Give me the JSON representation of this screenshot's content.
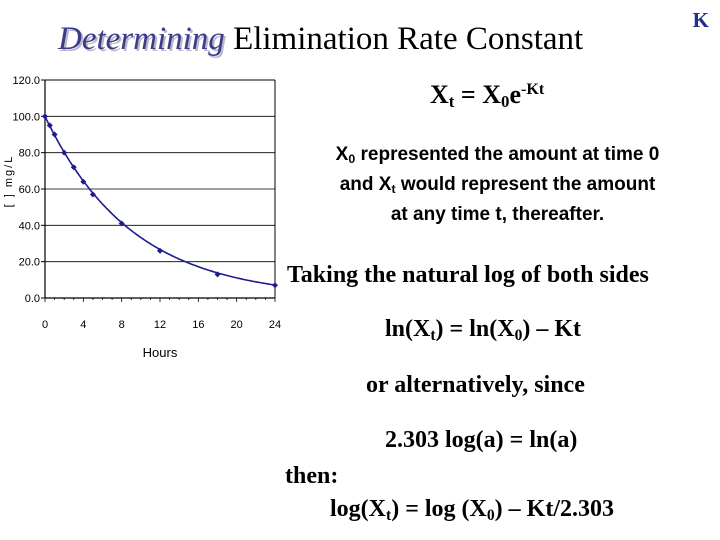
{
  "title": {
    "emphasis": "Determining",
    "rest": " Elimination Rate Constant"
  },
  "corner_label": "K",
  "equation1": {
    "a": "X",
    "a_sub": "t",
    "b": " = X",
    "b_sub": "0",
    "c": "e",
    "c_sup": "-Kt"
  },
  "description": {
    "l1_a": "X",
    "l1_sub": "0",
    "l1_b": " represented the amount at time 0",
    "l2_a": "and X",
    "l2_sub": "t",
    "l2_b": " would represent the amount",
    "l3": "at any time t, thereafter."
  },
  "taking_log": "Taking the natural log of both sides",
  "equation2": {
    "a": "ln(X",
    "a_sub": "t",
    "b": ") = ln(X",
    "b_sub": "0",
    "c": ") – Kt"
  },
  "alternatively": "or alternatively, since",
  "identity": "2.303 log(a) = ln(a)",
  "then": "then:",
  "equation3": {
    "a": "log(X",
    "a_sub": "t",
    "b": ") = log (X",
    "b_sub": "0",
    "c": ") – Kt/2.303"
  },
  "chart_data": {
    "type": "line",
    "xlabel": "Hours",
    "ylabel": "[ ] mg/L",
    "x_ticks": [
      "0",
      "4",
      "8",
      "12",
      "16",
      "20",
      "24"
    ],
    "y_ticks": [
      "0.0",
      "20.0",
      "40.0",
      "60.0",
      "80.0",
      "100.0",
      "120.0"
    ],
    "xlim": [
      0,
      24
    ],
    "ylim": [
      0,
      120
    ],
    "grid": true,
    "curve": {
      "initial": 100,
      "k": 0.11
    },
    "points": [
      {
        "x": 0,
        "y": 100
      },
      {
        "x": 0.5,
        "y": 95
      },
      {
        "x": 1,
        "y": 90
      },
      {
        "x": 2,
        "y": 80
      },
      {
        "x": 3,
        "y": 72
      },
      {
        "x": 4,
        "y": 64
      },
      {
        "x": 5,
        "y": 57
      },
      {
        "x": 8,
        "y": 41
      },
      {
        "x": 12,
        "y": 26
      },
      {
        "x": 18,
        "y": 13
      },
      {
        "x": 24,
        "y": 7
      }
    ],
    "line_color": "#1c1c8c",
    "marker_color": "#1c1c8c"
  }
}
